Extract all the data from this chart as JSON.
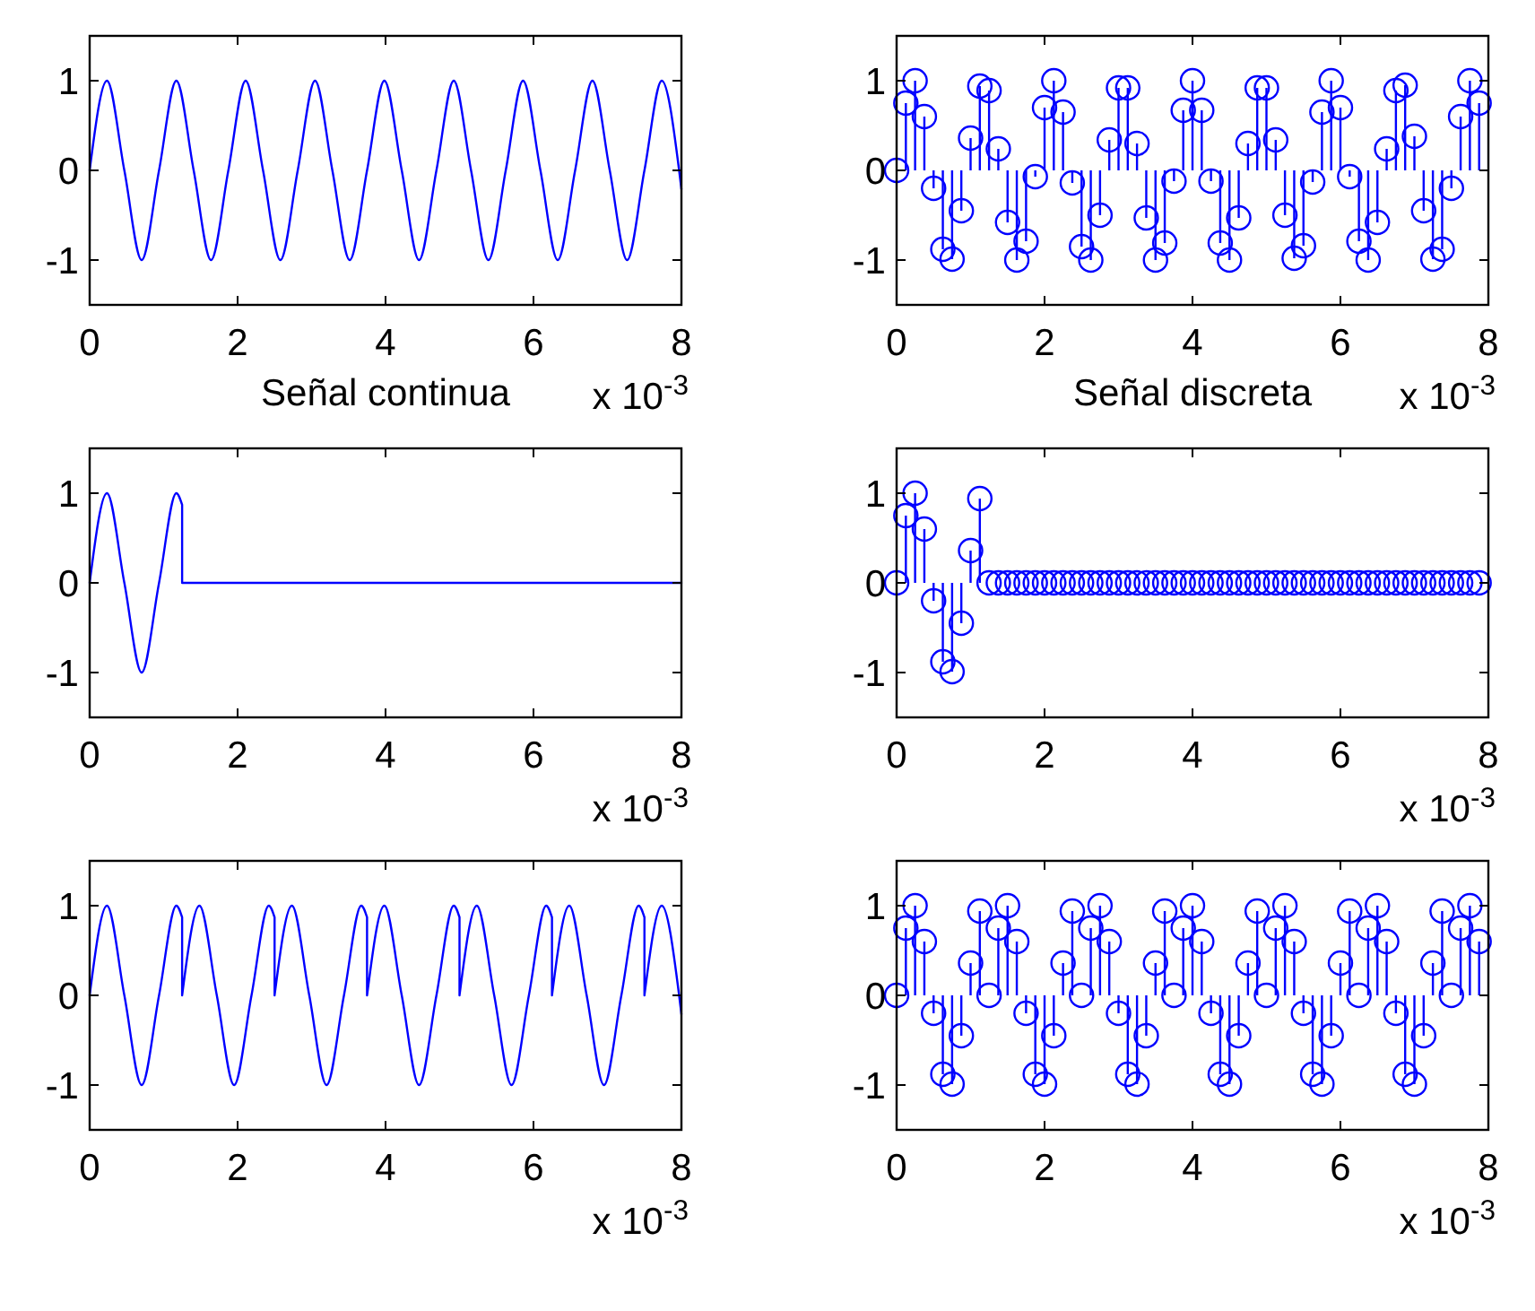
{
  "chart_data": [
    {
      "type": "line",
      "xlabel": "Señal continua",
      "color": "#0000ff",
      "xlim": [
        0,
        8
      ],
      "xticks": [
        0,
        2,
        4,
        6,
        8
      ],
      "ylim": [
        -1.5,
        1.5
      ],
      "yticks": [
        -1,
        0,
        1
      ],
      "annotations": [
        "x 10$^{-3}$"
      ],
      "x": [
        0,
        0.234,
        0.469,
        0.703,
        0.938,
        1.172,
        1.406,
        1.641,
        1.875,
        2.109,
        2.344,
        2.578,
        2.813,
        3.047,
        3.281,
        3.516,
        3.75,
        3.984,
        4.219,
        4.453,
        4.688,
        4.922,
        5.156,
        5.391,
        5.625,
        5.859,
        6.094,
        6.328,
        6.563,
        6.797,
        7.031,
        7.266,
        7.5,
        7.734,
        7.969,
        8
      ],
      "values": [
        0,
        1,
        0,
        -1,
        0,
        1,
        0,
        -1,
        0,
        1,
        0,
        -1,
        0,
        1,
        0,
        -1,
        0,
        1,
        0,
        -1,
        0,
        1,
        0,
        -1,
        0,
        1,
        0,
        -1,
        0,
        1,
        0,
        -1,
        0,
        1,
        0,
        -0.21
      ]
    },
    {
      "type": "lollipop",
      "xlabel": "Señal discreta",
      "marker": "circle",
      "color": "#0000ff",
      "xlim": [
        0,
        8
      ],
      "xticks": [
        0,
        2,
        4,
        6,
        8
      ],
      "ylim": [
        -1.5,
        1.5
      ],
      "yticks": [
        -1,
        0,
        1
      ],
      "annotations": [
        "x 10$^{-3}$"
      ],
      "x": [
        0,
        0.125,
        0.25,
        0.375,
        0.5,
        0.625,
        0.75,
        0.875,
        1,
        1.125,
        1.25,
        1.375,
        1.5,
        1.625,
        1.75,
        1.875,
        2,
        2.125,
        2.25,
        2.375,
        2.5,
        2.625,
        2.75,
        2.875,
        3,
        3.125,
        3.25,
        3.375,
        3.5,
        3.625,
        3.75,
        3.875,
        4,
        4.125,
        4.25,
        4.375,
        4.5,
        4.625,
        4.75,
        4.875,
        5,
        5.125,
        5.25,
        5.375,
        5.5,
        5.625,
        5.75,
        5.875,
        6,
        6.125,
        6.25,
        6.375,
        6.5,
        6.625,
        6.75,
        6.875,
        7,
        7.125,
        7.25,
        7.375,
        7.5,
        7.625,
        7.75,
        7.875
      ],
      "values": [
        0,
        0.75,
        1,
        0.6,
        -0.2,
        -0.88,
        -0.99,
        -0.45,
        0.36,
        0.94,
        0.89,
        0.24,
        -0.58,
        -1,
        -0.79,
        -0.07,
        0.7,
        1,
        0.65,
        -0.14,
        -0.85,
        -1,
        -0.5,
        0.34,
        0.92,
        0.92,
        0.3,
        -0.53,
        -1,
        -0.81,
        -0.12,
        0.67,
        1,
        0.67,
        -0.12,
        -0.81,
        -1,
        -0.53,
        0.3,
        0.92,
        0.92,
        0.34,
        -0.5,
        -0.98,
        -0.84,
        -0.13,
        0.65,
        1,
        0.7,
        -0.07,
        -0.79,
        -1,
        -0.58,
        0.24,
        0.89,
        0.95,
        0.38,
        -0.45,
        -0.99,
        -0.88,
        -0.2,
        0.6,
        1,
        0.75
      ]
    },
    {
      "type": "line",
      "color": "#0000ff",
      "xlim": [
        0,
        8
      ],
      "xticks": [
        0,
        2,
        4,
        6,
        8
      ],
      "ylim": [
        -1.5,
        1.5
      ],
      "yticks": [
        -1,
        0,
        1
      ],
      "annotations": [
        "x 10$^{-3}$"
      ],
      "x": [
        0,
        0.234,
        0.469,
        0.703,
        0.938,
        1.172,
        1.25,
        1.25,
        8
      ],
      "values": [
        0,
        1,
        0,
        -1,
        0,
        1,
        0.87,
        0,
        0
      ]
    },
    {
      "type": "lollipop",
      "marker": "circle",
      "color": "#0000ff",
      "xlim": [
        0,
        8
      ],
      "xticks": [
        0,
        2,
        4,
        6,
        8
      ],
      "ylim": [
        -1.5,
        1.5
      ],
      "yticks": [
        -1,
        0,
        1
      ],
      "annotations": [
        "x 10$^{-3}$"
      ],
      "x": [
        0,
        0.125,
        0.25,
        0.375,
        0.5,
        0.625,
        0.75,
        0.875,
        1,
        1.125,
        1.25,
        1.375,
        1.5,
        1.625,
        1.75,
        1.875,
        2,
        2.125,
        2.25,
        2.375,
        2.5,
        2.625,
        2.75,
        2.875,
        3,
        3.125,
        3.25,
        3.375,
        3.5,
        3.625,
        3.75,
        3.875,
        4,
        4.125,
        4.25,
        4.375,
        4.5,
        4.625,
        4.75,
        4.875,
        5,
        5.125,
        5.25,
        5.375,
        5.5,
        5.625,
        5.75,
        5.875,
        6,
        6.125,
        6.25,
        6.375,
        6.5,
        6.625,
        6.75,
        6.875,
        7,
        7.125,
        7.25,
        7.375,
        7.5,
        7.625,
        7.75,
        7.875
      ],
      "values": [
        0,
        0.75,
        1,
        0.6,
        -0.2,
        -0.88,
        -0.99,
        -0.45,
        0.36,
        0.94,
        0,
        0,
        0,
        0,
        0,
        0,
        0,
        0,
        0,
        0,
        0,
        0,
        0,
        0,
        0,
        0,
        0,
        0,
        0,
        0,
        0,
        0,
        0,
        0,
        0,
        0,
        0,
        0,
        0,
        0,
        0,
        0,
        0,
        0,
        0,
        0,
        0,
        0,
        0,
        0,
        0,
        0,
        0,
        0,
        0,
        0,
        0,
        0,
        0,
        0,
        0,
        0,
        0,
        0
      ]
    },
    {
      "type": "line",
      "color": "#0000ff",
      "xlim": [
        0,
        8
      ],
      "xticks": [
        0,
        2,
        4,
        6,
        8
      ],
      "ylim": [
        -1.5,
        1.5
      ],
      "yticks": [
        -1,
        0,
        1
      ],
      "annotations": [
        "x 10$^{-3}$"
      ],
      "x": [
        0,
        0.234,
        0.469,
        0.703,
        0.938,
        1.172,
        1.25,
        1.25,
        1.484,
        1.719,
        1.953,
        2.188,
        2.422,
        2.5,
        2.5,
        2.734,
        2.969,
        3.203,
        3.438,
        3.672,
        3.75,
        3.75,
        3.984,
        4.219,
        4.453,
        4.688,
        4.922,
        5,
        5,
        5.234,
        5.469,
        5.703,
        5.938,
        6.172,
        6.25,
        6.25,
        6.484,
        6.719,
        6.953,
        7.188,
        7.422,
        7.5,
        7.5,
        7.734,
        7.969,
        8
      ],
      "values": [
        0,
        1,
        0,
        -1,
        0,
        1,
        0.87,
        0,
        1,
        0,
        -1,
        0,
        1,
        0.87,
        0,
        1,
        0,
        -1,
        0,
        1,
        0.87,
        0,
        1,
        0,
        -1,
        0,
        1,
        0.87,
        0,
        1,
        0,
        -1,
        0,
        1,
        0.87,
        0,
        1,
        0,
        -1,
        0,
        1,
        0.87,
        0,
        1,
        0,
        -0.21
      ]
    },
    {
      "type": "lollipop",
      "marker": "circle",
      "color": "#0000ff",
      "xlim": [
        0,
        8
      ],
      "xticks": [
        0,
        2,
        4,
        6,
        8
      ],
      "ylim": [
        -1.5,
        1.5
      ],
      "yticks": [
        -1,
        0,
        1
      ],
      "annotations": [
        "x 10$^{-3}$"
      ],
      "x": [
        0,
        0.125,
        0.25,
        0.375,
        0.5,
        0.625,
        0.75,
        0.875,
        1,
        1.125,
        1.25,
        1.375,
        1.5,
        1.625,
        1.75,
        1.875,
        2,
        2.125,
        2.25,
        2.375,
        2.5,
        2.625,
        2.75,
        2.875,
        3,
        3.125,
        3.25,
        3.375,
        3.5,
        3.625,
        3.75,
        3.875,
        4,
        4.125,
        4.25,
        4.375,
        4.5,
        4.625,
        4.75,
        4.875,
        5,
        5.125,
        5.25,
        5.375,
        5.5,
        5.625,
        5.75,
        5.875,
        6,
        6.125,
        6.25,
        6.375,
        6.5,
        6.625,
        6.75,
        6.875,
        7,
        7.125,
        7.25,
        7.375,
        7.5,
        7.625,
        7.75,
        7.875
      ],
      "values": [
        0,
        0.75,
        1,
        0.6,
        -0.2,
        -0.88,
        -0.99,
        -0.45,
        0.36,
        0.94,
        0,
        0.75,
        1,
        0.6,
        -0.2,
        -0.88,
        -0.99,
        -0.45,
        0.36,
        0.94,
        0,
        0.75,
        1,
        0.6,
        -0.2,
        -0.88,
        -0.99,
        -0.45,
        0.36,
        0.94,
        0,
        0.75,
        1,
        0.6,
        -0.2,
        -0.88,
        -0.99,
        -0.45,
        0.36,
        0.94,
        0,
        0.75,
        1,
        0.6,
        -0.2,
        -0.88,
        -0.99,
        -0.45,
        0.36,
        0.94,
        0,
        0.75,
        1,
        0.6,
        -0.2,
        -0.88,
        -0.99,
        -0.45,
        0.36,
        0.94,
        0,
        0.75,
        1,
        0.6
      ]
    }
  ]
}
